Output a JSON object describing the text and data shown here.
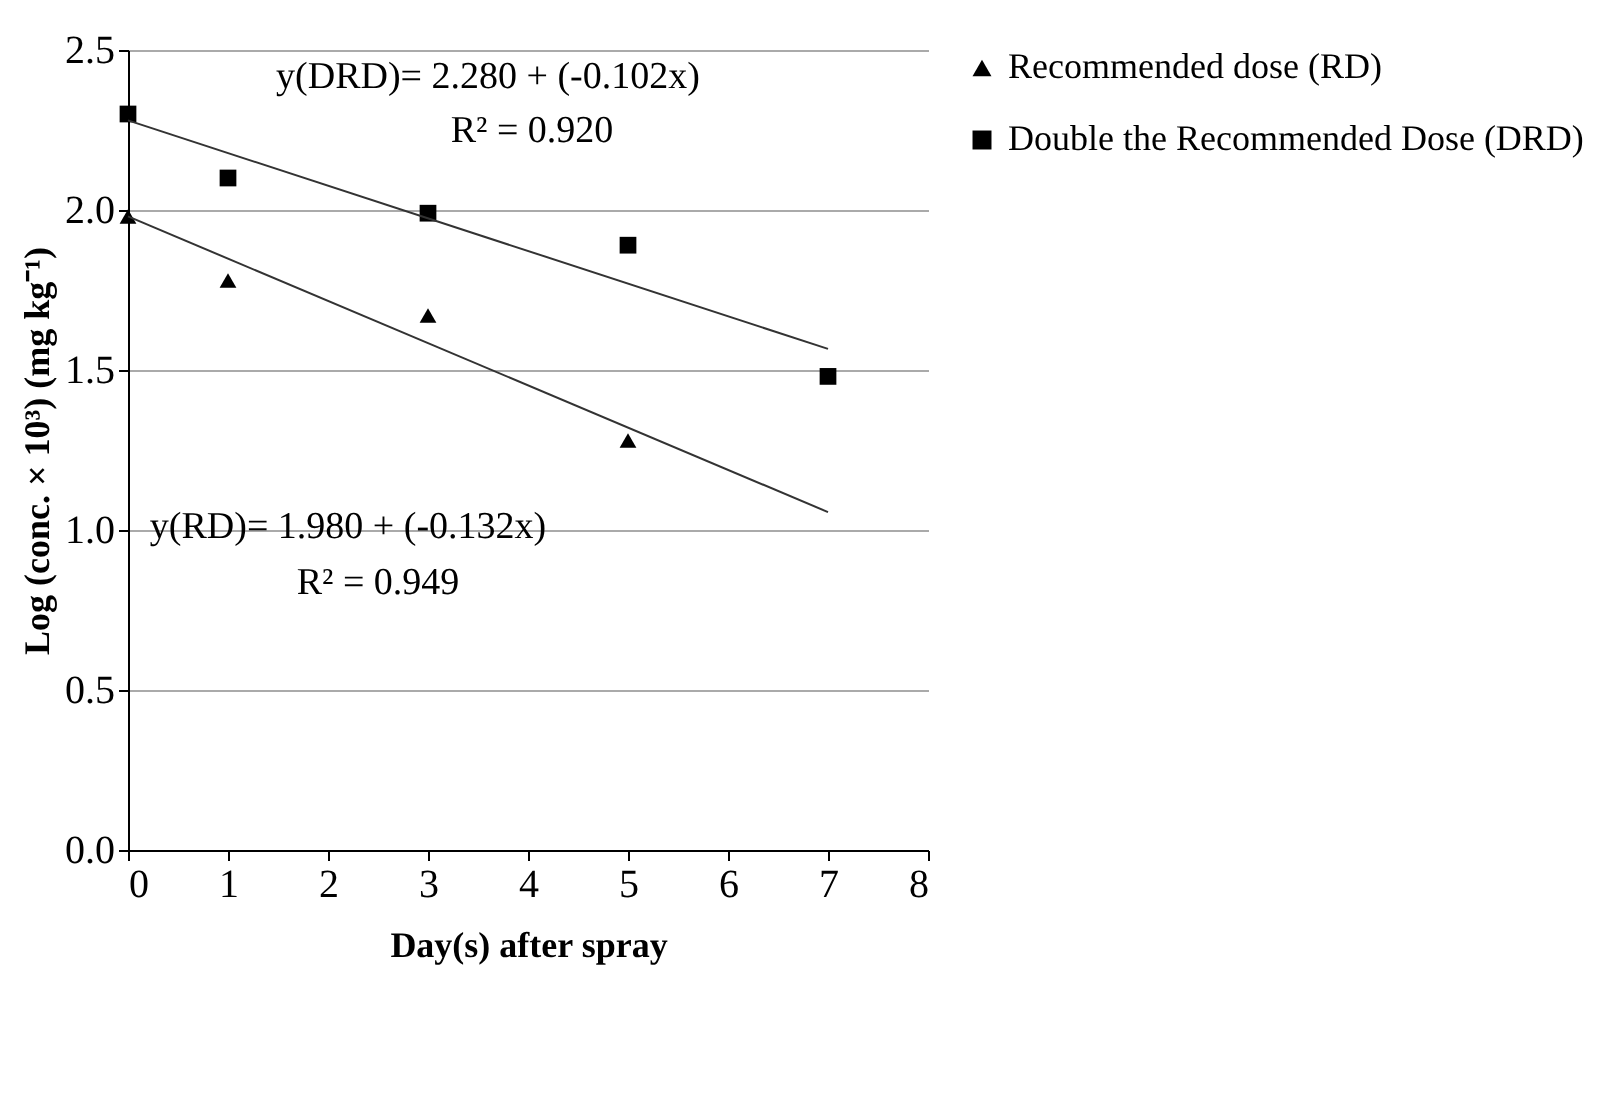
{
  "chart_data": {
    "type": "scatter",
    "xlabel": "Day(s) after spray",
    "ylabel": "Log (conc. × 10³) (mg kg⁻¹)",
    "xlim": [
      0,
      8
    ],
    "xticks": [
      0,
      1,
      2,
      3,
      4,
      5,
      6,
      7,
      8
    ],
    "ylim": [
      0,
      2.5
    ],
    "yticks": [
      {
        "value": 0,
        "label": "0.0"
      },
      {
        "value": 0.5,
        "label": "0.5"
      },
      {
        "value": 1,
        "label": "1.0"
      },
      {
        "value": 1.5,
        "label": "1.5"
      },
      {
        "value": 2,
        "label": "2.0"
      },
      {
        "value": 2.5,
        "label": "2.5"
      }
    ],
    "grid": "y",
    "legend": "right",
    "series": [
      {
        "name": "Recommended dose (RD)",
        "color": "#000000",
        "marker": "triangle",
        "x": [
          0,
          1,
          3,
          5
        ],
        "values": [
          1.98,
          1.78,
          1.67,
          1.28
        ]
      },
      {
        "name": "Double the Recommended Dose (DRD)",
        "color": "#000000",
        "marker": "square",
        "x": [
          0,
          1,
          3,
          5,
          7
        ],
        "values": [
          2.3,
          2.1,
          1.99,
          1.89,
          1.48
        ]
      },
      {
        "type": "line",
        "color": "#333333",
        "x": [
          0,
          7
        ],
        "values": [
          1.98,
          1.056
        ]
      },
      {
        "type": "line",
        "color": "#333333",
        "x": [
          0,
          7
        ],
        "values": [
          2.28,
          1.566
        ]
      }
    ],
    "annotations": [
      "y(DRD)= 2.280 +  (-0.102x)",
      "R² = 0.920",
      "y(RD)= 1.980 + (-0.132x)",
      "R² = 0.949"
    ]
  }
}
